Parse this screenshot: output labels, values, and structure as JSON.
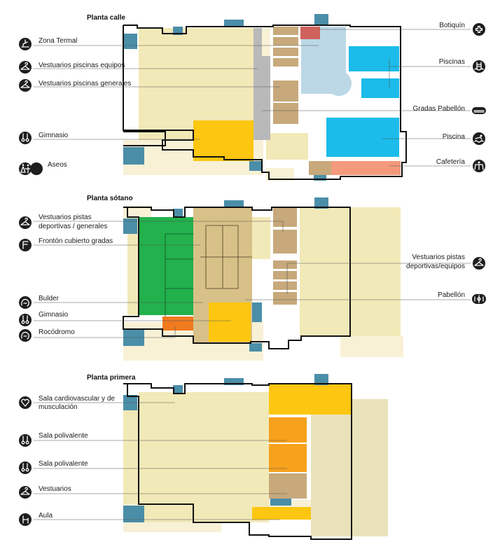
{
  "colors": {
    "cream": "#f2e9b8",
    "pale_cream": "#f8f1d6",
    "beige": "#e9e2bb",
    "tan": "#c7a97b",
    "khaki": "#d8c188",
    "gray": "#b9b9b9",
    "light_blue": "#bcd8e6",
    "cyan": "#1bbcea",
    "red": "#cf625c",
    "salmon": "#f39a7c",
    "yellow": "#fcc611",
    "orange": "#f7a11c",
    "dark_orange": "#f07a1e",
    "green": "#22b14c",
    "steel_blue": "#4b8ea8",
    "icon": "#1e1e1e"
  },
  "floors": [
    {
      "title": "Planta calle",
      "left_labels": [
        {
          "text": "Zona Termal",
          "icon": "lounger-icon"
        },
        {
          "text": "Vestuarios piscinas equipos",
          "icon": "hanger-icon"
        },
        {
          "text": "Vestuarios piscinas generales",
          "icon": "hanger-icon"
        },
        {
          "text": "Gimnasio",
          "icon": "rings-icon"
        },
        {
          "text": "Aseos",
          "icon": "restroom-icon"
        }
      ],
      "right_labels": [
        {
          "text": "Botiquín",
          "icon": "first-aid-icon"
        },
        {
          "text": "Piscinas",
          "icon": "pool-icon"
        },
        {
          "text": "Gradas Pabellón",
          "icon": "bleachers-icon"
        },
        {
          "text": "Piscina",
          "icon": "swimmer-icon"
        },
        {
          "text": "Cafetería",
          "icon": "cafe-icon"
        }
      ]
    },
    {
      "title": "Planta sótano",
      "left_labels": [
        {
          "text": "Vestuarios pistas",
          "text2": "deportivas / generales",
          "icon": "hanger-icon"
        },
        {
          "text": "Frontón cubierto gradas",
          "icon": "fronton-icon"
        },
        {
          "text": "Bulder",
          "icon": "climbing-icon"
        },
        {
          "text": "Gimnasio",
          "icon": "rings-icon"
        },
        {
          "text": "Rocódromo",
          "icon": "climbing-icon"
        }
      ],
      "right_labels": [
        {
          "text": "Vestuarios pistas",
          "text2": "deportivas/equipos",
          "icon": "hanger-icon"
        },
        {
          "text": "Pabellón",
          "icon": "court-icon"
        }
      ]
    },
    {
      "title": "Planta primera",
      "left_labels": [
        {
          "text": "Sala cardiovascular y de",
          "text2": "musculación",
          "icon": "heart-icon"
        },
        {
          "text": "Sala polivalente",
          "icon": "rings-icon"
        },
        {
          "text": "Sala polivalente",
          "icon": "rings-icon"
        },
        {
          "text": "Vestuarios",
          "icon": "hanger-icon"
        },
        {
          "text": "Aula",
          "icon": "chair-icon"
        }
      ]
    }
  ]
}
